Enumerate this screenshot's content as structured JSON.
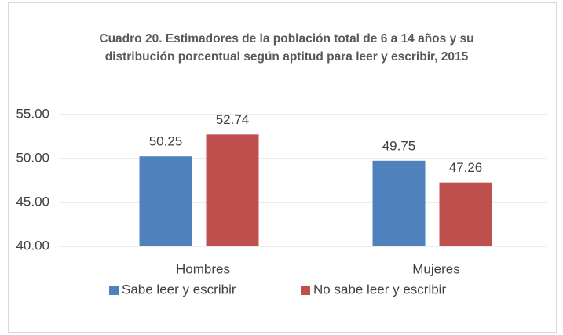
{
  "chart_data": {
    "type": "bar",
    "title": "Cuadro 20. Estimadores de la población total de 6 a 14 años y su distribución porcentual según aptitud para leer y escribir, 2015",
    "categories": [
      "Hombres",
      "Mujeres"
    ],
    "series": [
      {
        "name": "Sabe leer y escribir",
        "color": "#4f81bd",
        "values": [
          50.25,
          49.75
        ]
      },
      {
        "name": "No sabe leer y escribir",
        "color": "#c0504d",
        "values": [
          52.74,
          47.26
        ]
      }
    ],
    "ylim": [
      40,
      55
    ],
    "yticks": [
      {
        "value": 40,
        "label": "40.00"
      },
      {
        "value": 45,
        "label": "45.00"
      },
      {
        "value": 50,
        "label": "50.00"
      },
      {
        "value": 55,
        "label": "55.00"
      }
    ],
    "grid": true,
    "legend": "bottom"
  }
}
